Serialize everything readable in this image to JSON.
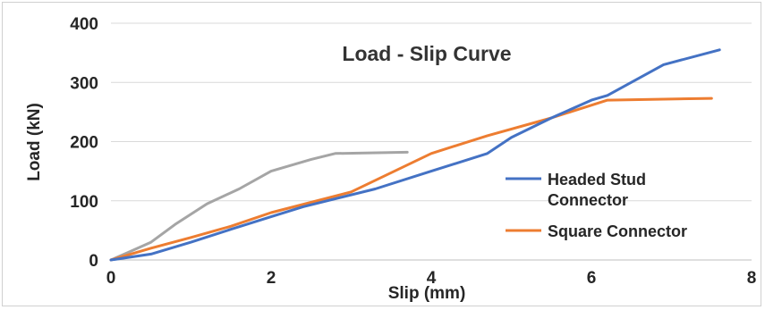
{
  "chart_data": {
    "type": "line",
    "title": "Load - Slip Curve",
    "xlabel": "Slip (mm)",
    "ylabel": "Load (kN)",
    "xlim": [
      0,
      8
    ],
    "ylim": [
      0,
      400
    ],
    "xticks": [
      "0",
      "2",
      "4",
      "6",
      "8"
    ],
    "yticks": [
      "0",
      "100",
      "200",
      "300",
      "400"
    ],
    "grid": "horizontal",
    "legend_position": "right",
    "series": [
      {
        "name": "Headed Stud Connector",
        "color": "#4472C4",
        "x": [
          0,
          0.5,
          1.0,
          1.5,
          2.0,
          2.4,
          3.3,
          4.0,
          4.7,
          5.0,
          5.5,
          6.0,
          6.2,
          6.9,
          7.6
        ],
        "y": [
          0,
          10,
          30,
          52,
          73,
          90,
          120,
          150,
          180,
          207,
          240,
          270,
          278,
          330,
          355
        ]
      },
      {
        "name": "Square Connector",
        "color": "#ED7D31",
        "x": [
          0,
          0.5,
          1.0,
          1.5,
          2.0,
          3.0,
          4.0,
          4.7,
          5.5,
          6.2,
          7.5
        ],
        "y": [
          0,
          20,
          38,
          57,
          80,
          115,
          180,
          210,
          240,
          270,
          273
        ]
      },
      {
        "color": "#A5A5A5",
        "x": [
          0,
          0.2,
          0.5,
          0.8,
          1.2,
          1.6,
          2.0,
          2.5,
          2.8,
          3.7
        ],
        "y": [
          0,
          12,
          30,
          60,
          95,
          120,
          150,
          170,
          180,
          182
        ]
      }
    ]
  }
}
